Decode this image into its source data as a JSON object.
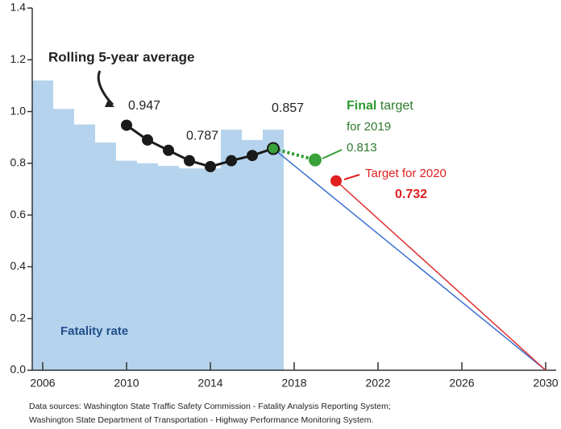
{
  "chart_data": {
    "type": "combo",
    "xlim": [
      2005.5,
      2030.5
    ],
    "xticks": [
      2006,
      2010,
      2014,
      2018,
      2022,
      2026,
      2030
    ],
    "ylim": [
      0,
      1.4
    ],
    "yticks": [
      {
        "value": 0,
        "label": "0.0"
      },
      0.2,
      0.4,
      0.6,
      0.8,
      {
        "value": 1,
        "label": "1.0"
      },
      1.2,
      1.4
    ],
    "bars": {
      "name": "Fatality rate",
      "color": "#b5d3ec",
      "x": [
        2006,
        2007,
        2008,
        2009,
        2010,
        2011,
        2012,
        2013,
        2014,
        2015,
        2016,
        2017
      ],
      "values": [
        1.12,
        1.01,
        0.95,
        0.88,
        0.81,
        0.8,
        0.79,
        0.78,
        0.78,
        0.93,
        0.89,
        0.93
      ]
    },
    "rolling": {
      "name": "Rolling 5-year average",
      "color": "#1a1a1a",
      "x": [
        2010,
        2011,
        2012,
        2013,
        2014,
        2015,
        2016,
        2017
      ],
      "values": [
        0.947,
        0.89,
        0.85,
        0.81,
        0.787,
        0.81,
        0.83,
        0.857
      ],
      "labeled": [
        0,
        4,
        7
      ]
    },
    "trend_lines": [
      {
        "color": "#3a6fd0",
        "x": [
          2017,
          2030
        ],
        "values": [
          0.857,
          0
        ]
      },
      {
        "color": "#e03030",
        "x": [
          2020,
          2030
        ],
        "values": [
          0.732,
          0
        ]
      },
      {
        "color": "#2e9a2e",
        "dashed": true,
        "x": [
          2017,
          2019
        ],
        "values": [
          0.857,
          0.813
        ]
      }
    ],
    "targets": [
      {
        "label_bold": "Final",
        "label_rest": " target",
        "label_line2": "for 2019",
        "x": 2019,
        "value": 0.813,
        "color": "#3aa23a",
        "text_color": "#2e9a2e"
      },
      {
        "label": "Target for 2020",
        "x": 2020,
        "value": 0.732,
        "color": "#e02020",
        "text_color": "#e02020"
      }
    ],
    "sources": [
      "Data sources: Washington State Traffic Safety Commission - Fatality Analysis Reporting System;",
      "Washington State Department of Transportation - Highway Performance Monitoring System."
    ]
  }
}
